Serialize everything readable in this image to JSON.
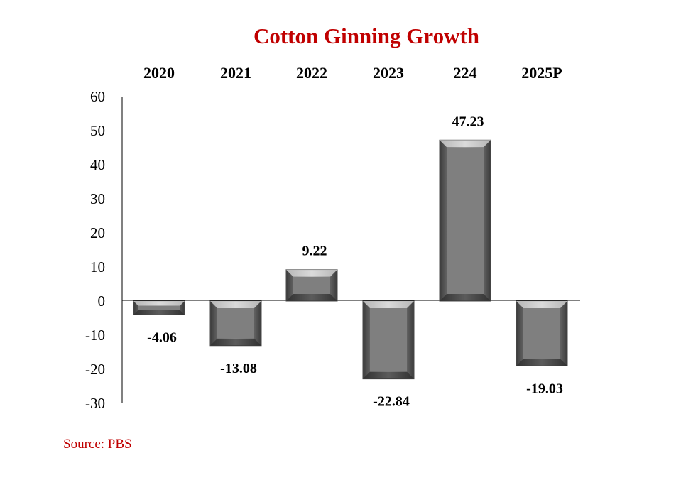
{
  "chart_data": {
    "type": "bar",
    "title": "Cotton Ginning Growth",
    "categories": [
      "2020",
      "2021",
      "2022",
      "2023",
      "224",
      "2025P"
    ],
    "values": [
      -4.06,
      -13.08,
      9.22,
      -22.84,
      47.23,
      -19.03
    ],
    "value_labels": [
      "-4.06",
      "-13.08",
      "9.22",
      "-22.84",
      "47.23",
      "-19.03"
    ],
    "ylim": [
      -30,
      60
    ],
    "yticks": [
      "60",
      "50",
      "40",
      "30",
      "20",
      "10",
      "0",
      "-10",
      "-20",
      "-30"
    ],
    "xlabel": "",
    "ylabel": "",
    "category_axis_position": "top",
    "grid": false,
    "legend": "none",
    "bar_color": "#7f7f7f"
  },
  "source": "Source: PBS",
  "colors": {
    "title": "#c00000",
    "source": "#c00000",
    "bar": "#7f7f7f"
  }
}
